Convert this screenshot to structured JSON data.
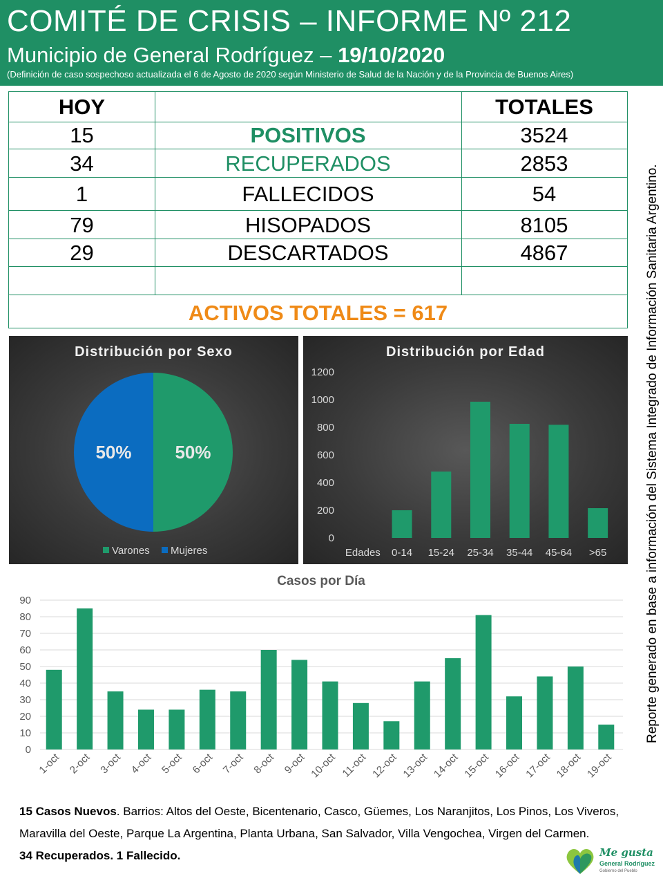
{
  "header": {
    "title": "COMITÉ DE CRISIS – INFORME Nº 212",
    "subtitle_prefix": "Municipio de General Rodríguez –",
    "subtitle_date": "19/10/2020",
    "note": "(Definición de caso sospechoso actualizada el 6 de Agosto de 2020 según Ministerio de Salud de la Nación y de la Provincia de Buenos Aires)"
  },
  "table": {
    "col_today": "HOY",
    "col_totals": "TOTALES",
    "rows": [
      {
        "today": "15",
        "label": "POSITIVOS",
        "total": "3524"
      },
      {
        "today": "34",
        "label": "RECUPERADOS",
        "total": "2853"
      },
      {
        "today": "1",
        "label": "FALLECIDOS",
        "total": "54"
      },
      {
        "today": "79",
        "label": "HISOPADOS",
        "total": "8105"
      },
      {
        "today": "29",
        "label": "DESCARTADOS",
        "total": "4867"
      }
    ],
    "activos": "ACTIVOS TOTALES = 617"
  },
  "colors": {
    "brand_green": "#1f8f64",
    "bar_green": "#1f9a6b",
    "blue": "#0b6cc0",
    "orange": "#ef8a17"
  },
  "chart_data": [
    {
      "type": "pie",
      "title": "Distribución por Sexo",
      "labels": [
        "Varones",
        "Mujeres"
      ],
      "values": [
        50,
        50
      ],
      "value_labels": [
        "50%",
        "50%"
      ],
      "colors": [
        "#1f9a6b",
        "#0b6cc0"
      ],
      "legend": "bottom"
    },
    {
      "type": "bar",
      "title": "Distribución por Edad",
      "categories": [
        "Edades",
        "0-14",
        "15-24",
        "25-34",
        "35-44",
        "45-64",
        ">65"
      ],
      "values": [
        0,
        200,
        480,
        985,
        825,
        818,
        215
      ],
      "ylim": [
        0,
        1200
      ],
      "yticks": [
        "0",
        "200",
        "400",
        "600",
        "800",
        "1000",
        "1200"
      ],
      "color": "#1f9a6b",
      "grid": false
    },
    {
      "type": "bar",
      "title": "Casos por Día",
      "categories": [
        "1-oct",
        "2-oct",
        "3-oct",
        "4-oct",
        "5-oct",
        "6-oct",
        "7-oct",
        "8-oct",
        "9-oct",
        "10-oct",
        "11-oct",
        "12-oct",
        "13-oct",
        "14-oct",
        "15-oct",
        "16-oct",
        "17-oct",
        "18-oct",
        "19-oct"
      ],
      "values": [
        48,
        85,
        35,
        24,
        24,
        36,
        35,
        60,
        54,
        41,
        28,
        17,
        41,
        55,
        81,
        32,
        44,
        50,
        15
      ],
      "ylim": [
        0,
        90
      ],
      "yticks": [
        "0",
        "10",
        "20",
        "30",
        "40",
        "50",
        "60",
        "70",
        "80",
        "90"
      ],
      "color": "#1f9a6b",
      "grid": true
    }
  ],
  "side_note": "Reporte generado en base a información del Sistema Integrado de Información Sanitaria Argentino.",
  "bottom": {
    "new_cases_bold": "15 Casos Nuevos",
    "new_cases_rest": ". Barrios: Altos del Oeste, Bicentenario, Casco, Güemes, Los Naranjitos, Los Pinos, Los Viveros, Maravilla del Oeste, Parque La Argentina, Planta Urbana, San Salvador, Villa Vengochea, Virgen del Carmen.",
    "recovered": "34 Recuperados. 1 Fallecido."
  },
  "logo": {
    "line1": "Me gusta",
    "line2": "General Rodríguez",
    "line3": "Gobierno del Pueblo"
  }
}
